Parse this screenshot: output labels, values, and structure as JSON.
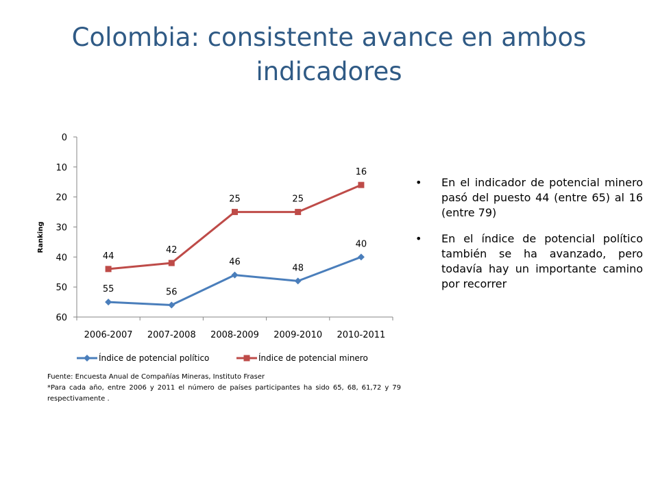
{
  "slide": {
    "title": "Colombia: consistente avance en ambos indicadores",
    "bullets": [
      "En el indicador de potencial minero pasó del puesto 44 (entre 65) al 16 (entre 79)",
      "En el índice de potencial político también se ha avanzado, pero todavía hay un importante camino por recorrer"
    ],
    "footnotes": [
      "Fuente: Encuesta Anual de Compañías Mineras, Instituto Fraser",
      "*Para cada año, entre 2006 y 2011 el número de países participantes ha sido 65, 68, 61,72 y 79 respectivamente ."
    ]
  },
  "chart_data": {
    "type": "line",
    "title": "",
    "xlabel": "",
    "ylabel": "Ranking",
    "categories": [
      "2006-2007",
      "2007-2008",
      "2008-2009",
      "2009-2010",
      "2010-2011"
    ],
    "y_ticks": [
      0,
      10,
      20,
      30,
      40,
      50,
      60
    ],
    "ylim": [
      0,
      60
    ],
    "y_reversed": true,
    "grid": false,
    "legend_position": "bottom",
    "series": [
      {
        "name": "Índice de potencial político",
        "values": [
          55,
          56,
          46,
          48,
          40
        ],
        "color": "#4a7ebb",
        "marker": "diamond"
      },
      {
        "name": "Índice de potencial minero",
        "values": [
          44,
          42,
          25,
          25,
          16
        ],
        "color": "#be4b48",
        "marker": "square"
      }
    ]
  }
}
